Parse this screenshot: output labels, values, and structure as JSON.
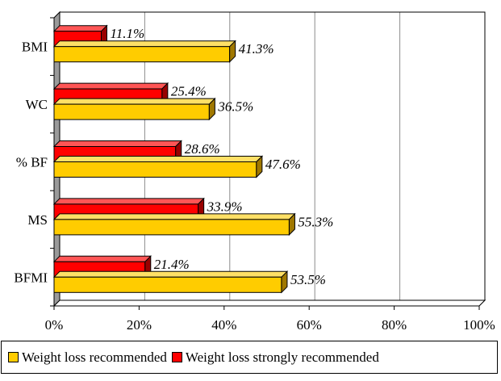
{
  "chart_data": {
    "type": "bar",
    "orientation": "horizontal",
    "style": "3d",
    "categories": [
      "BMI",
      "WC",
      "% BF",
      "MS",
      "BFMI"
    ],
    "series": [
      {
        "name": "Weight loss strongly recommended",
        "color": "#ff0000",
        "values": [
          11.1,
          25.4,
          28.6,
          33.9,
          21.4
        ],
        "labels": [
          "11.1%",
          "25.4%",
          "28.6%",
          "33.9%",
          "21.4%"
        ]
      },
      {
        "name": "Weight loss recommended",
        "color": "#ffcc00",
        "values": [
          41.3,
          36.5,
          47.6,
          55.3,
          53.5
        ],
        "labels": [
          "41.3%",
          "36.5%",
          "47.6%",
          "55.3%",
          "53.5%"
        ]
      }
    ],
    "xlim": [
      0,
      100
    ],
    "x_ticks": [
      "0%",
      "20%",
      "40%",
      "60%",
      "80%",
      "100%"
    ],
    "grid": "vertical",
    "legend_position": "bottom",
    "legend_order": [
      "Weight loss recommended",
      "Weight loss strongly recommended"
    ]
  }
}
